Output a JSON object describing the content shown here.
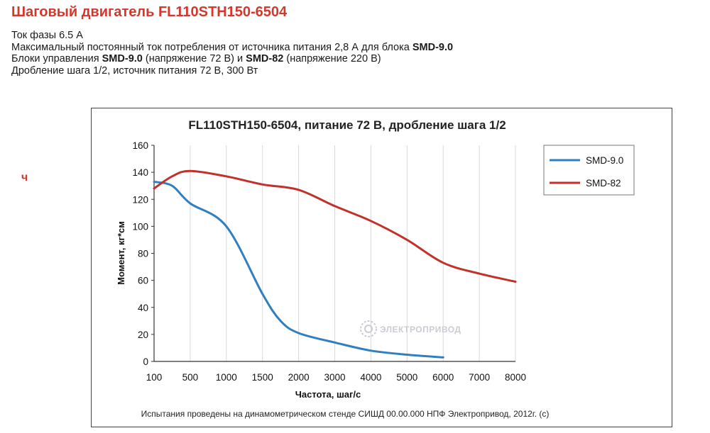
{
  "page": {
    "title": "Шаговый двигатель FL110STH150-6504",
    "side_mark": "ч",
    "specs": [
      {
        "text": "Ток фазы 6.5 А",
        "parts": []
      },
      {
        "parts": [
          {
            "t": "Максимальный постоянный ток потребления от источника питания 2,8 А для блока ",
            "b": false
          },
          {
            "t": "SMD-9.0",
            "b": true
          }
        ]
      },
      {
        "parts": [
          {
            "t": "Блоки управления ",
            "b": false
          },
          {
            "t": "SMD-9.0",
            "b": true
          },
          {
            "t": " (напряжение 72 В) и ",
            "b": false
          },
          {
            "t": "SMD-82",
            "b": true
          },
          {
            "t": " (напряжение 220 В)",
            "b": false
          }
        ]
      },
      {
        "text": "Дробление шага 1/2, источник питания 72 В, 300 Вт",
        "parts": []
      }
    ]
  },
  "chart_data": {
    "type": "line",
    "title": "FL110STH150-6504, питание 72 В, дробление шага 1/2",
    "xlabel": "Частота, шаг/с",
    "ylabel": "Момент, кг*см",
    "categories": [
      "100",
      "500",
      "1000",
      "1500",
      "2000",
      "3000",
      "4000",
      "5000",
      "6000",
      "7000",
      "8000"
    ],
    "ylim": [
      0,
      160
    ],
    "yticks": [
      0,
      20,
      40,
      60,
      80,
      100,
      120,
      140,
      160
    ],
    "grid": "vertical",
    "legend_position": "right",
    "series": [
      {
        "name": "SMD-9.0",
        "color": "#2f7fc1",
        "points": [
          [
            0,
            133
          ],
          [
            0.5,
            130
          ],
          [
            1.0,
            117
          ],
          [
            2.0,
            100
          ],
          [
            3.0,
            50
          ],
          [
            3.5,
            30
          ],
          [
            4.0,
            21
          ],
          [
            5.0,
            14
          ],
          [
            6.0,
            8
          ],
          [
            7.0,
            5
          ],
          [
            8.0,
            3
          ]
        ]
      },
      {
        "name": "SMD-82",
        "color": "#c0322a",
        "points": [
          [
            0,
            128
          ],
          [
            0.5,
            137
          ],
          [
            1.0,
            141
          ],
          [
            2.0,
            137
          ],
          [
            3.0,
            131
          ],
          [
            4.0,
            127
          ],
          [
            5.0,
            115
          ],
          [
            6.0,
            104
          ],
          [
            7.0,
            90
          ],
          [
            8.0,
            73
          ],
          [
            9.0,
            65
          ],
          [
            10.0,
            59
          ]
        ]
      }
    ],
    "footnote": "Испытания проведены на динамометрическом стенде СИШД 00.00.000 НПФ Электропривод, 2012г. (с)",
    "watermark": "ЭЛЕКТРОПРИВОД"
  }
}
